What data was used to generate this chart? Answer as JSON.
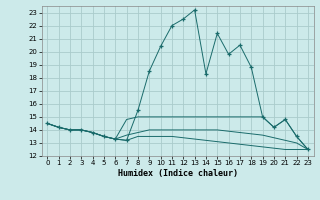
{
  "xlabel": "Humidex (Indice chaleur)",
  "bg_color": "#cceaea",
  "grid_color": "#aacccc",
  "line_color": "#1a6b6b",
  "xlim": [
    -0.5,
    23.5
  ],
  "ylim": [
    12,
    23.5
  ],
  "yticks": [
    12,
    13,
    14,
    15,
    16,
    17,
    18,
    19,
    20,
    21,
    22,
    23
  ],
  "xticks": [
    0,
    1,
    2,
    3,
    4,
    5,
    6,
    7,
    8,
    9,
    10,
    11,
    12,
    13,
    14,
    15,
    16,
    17,
    18,
    19,
    20,
    21,
    22,
    23
  ],
  "series": [
    {
      "x": [
        0,
        1,
        2,
        3,
        4,
        5,
        6,
        7,
        8,
        9,
        10,
        11,
        12,
        13,
        14,
        15,
        16,
        17,
        18,
        19,
        20,
        21,
        22,
        23
      ],
      "y": [
        14.5,
        14.2,
        14.0,
        14.0,
        13.8,
        13.5,
        13.3,
        13.2,
        15.5,
        18.5,
        20.4,
        22.0,
        22.5,
        23.2,
        18.3,
        21.4,
        19.8,
        20.5,
        18.8,
        15.0,
        14.2,
        14.8,
        13.5,
        12.5
      ],
      "marker": "+"
    },
    {
      "x": [
        0,
        1,
        2,
        3,
        4,
        5,
        6,
        7,
        8,
        9,
        10,
        11,
        12,
        13,
        14,
        15,
        16,
        17,
        18,
        19,
        20,
        21,
        22,
        23
      ],
      "y": [
        14.5,
        14.2,
        14.0,
        14.0,
        13.8,
        13.5,
        13.3,
        14.8,
        15.0,
        15.0,
        15.0,
        15.0,
        15.0,
        15.0,
        15.0,
        15.0,
        15.0,
        15.0,
        15.0,
        15.0,
        14.2,
        14.8,
        13.5,
        12.5
      ],
      "marker": null
    },
    {
      "x": [
        0,
        1,
        2,
        3,
        4,
        5,
        6,
        7,
        8,
        9,
        10,
        11,
        12,
        13,
        14,
        15,
        16,
        17,
        18,
        19,
        20,
        21,
        22,
        23
      ],
      "y": [
        14.5,
        14.2,
        14.0,
        14.0,
        13.8,
        13.5,
        13.3,
        13.6,
        13.8,
        14.0,
        14.0,
        14.0,
        14.0,
        14.0,
        14.0,
        14.0,
        13.9,
        13.8,
        13.7,
        13.6,
        13.4,
        13.2,
        13.0,
        12.5
      ],
      "marker": null
    },
    {
      "x": [
        0,
        1,
        2,
        3,
        4,
        5,
        6,
        7,
        8,
        9,
        10,
        11,
        12,
        13,
        14,
        15,
        16,
        17,
        18,
        19,
        20,
        21,
        22,
        23
      ],
      "y": [
        14.5,
        14.2,
        14.0,
        14.0,
        13.8,
        13.5,
        13.3,
        13.2,
        13.5,
        13.5,
        13.5,
        13.5,
        13.4,
        13.3,
        13.2,
        13.1,
        13.0,
        12.9,
        12.8,
        12.7,
        12.6,
        12.5,
        12.5,
        12.5
      ],
      "marker": null
    }
  ]
}
